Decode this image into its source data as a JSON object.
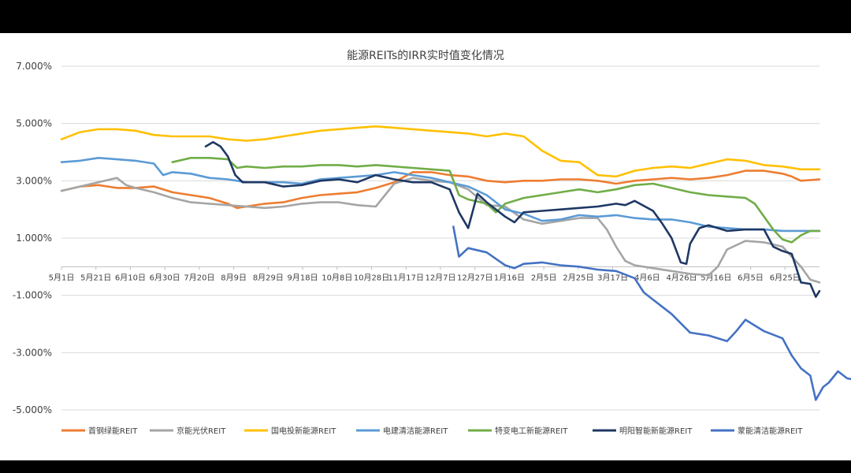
{
  "chart_data": {
    "type": "line",
    "title": "能源REITs的IRR实时值变化情况",
    "xlabel": "",
    "ylabel": "",
    "ylim": [
      -0.05,
      0.07
    ],
    "y_ticks": [
      0.07,
      0.05,
      0.03,
      0.01,
      -0.01,
      -0.03,
      -0.05
    ],
    "y_tick_labels": [
      "7.000%",
      "5.000%",
      "3.000%",
      "1.000%",
      "-1.000%",
      "-3.000%",
      "-5.000%"
    ],
    "x_tick_labels": [
      "5月1日",
      "5月21日",
      "6月10日",
      "6月30日",
      "7月20日",
      "8月9日",
      "8月29日",
      "9月18日",
      "10月8日",
      "10月28日",
      "11月17日",
      "12月7日",
      "12月27日",
      "1月16日",
      "2月5日",
      "2月25日",
      "3月17日",
      "4月6日",
      "4月26日",
      "5月16日",
      "6月5日",
      "6月25日"
    ],
    "x_range": [
      0,
      410
    ],
    "grid": true,
    "legend_position": "bottom",
    "series": [
      {
        "name": "首钢绿能REIT",
        "color": "#ED7D31",
        "points": [
          [
            0,
            0.0265
          ],
          [
            10,
            0.028
          ],
          [
            20,
            0.0285
          ],
          [
            30,
            0.0275
          ],
          [
            40,
            0.0275
          ],
          [
            50,
            0.028
          ],
          [
            60,
            0.026
          ],
          [
            70,
            0.025
          ],
          [
            80,
            0.024
          ],
          [
            90,
            0.022
          ],
          [
            95,
            0.0205
          ],
          [
            100,
            0.021
          ],
          [
            110,
            0.022
          ],
          [
            120,
            0.0225
          ],
          [
            130,
            0.024
          ],
          [
            140,
            0.025
          ],
          [
            150,
            0.0255
          ],
          [
            160,
            0.026
          ],
          [
            170,
            0.0275
          ],
          [
            180,
            0.0295
          ],
          [
            190,
            0.033
          ],
          [
            200,
            0.033
          ],
          [
            210,
            0.032
          ],
          [
            220,
            0.0315
          ],
          [
            230,
            0.03
          ],
          [
            240,
            0.0295
          ],
          [
            250,
            0.03
          ],
          [
            260,
            0.03
          ],
          [
            270,
            0.0305
          ],
          [
            280,
            0.0305
          ],
          [
            290,
            0.03
          ],
          [
            300,
            0.029
          ],
          [
            310,
            0.03
          ],
          [
            320,
            0.0305
          ],
          [
            330,
            0.031
          ],
          [
            340,
            0.0305
          ],
          [
            350,
            0.031
          ],
          [
            360,
            0.032
          ],
          [
            370,
            0.0335
          ],
          [
            380,
            0.0335
          ],
          [
            390,
            0.0325
          ],
          [
            395,
            0.0315
          ],
          [
            400,
            0.03
          ],
          [
            410,
            0.0305
          ]
        ]
      },
      {
        "name": "京能光伏REIT",
        "color": "#A5A5A5",
        "points": [
          [
            0,
            0.0265
          ],
          [
            10,
            0.028
          ],
          [
            20,
            0.0295
          ],
          [
            30,
            0.031
          ],
          [
            35,
            0.0285
          ],
          [
            40,
            0.0275
          ],
          [
            50,
            0.026
          ],
          [
            60,
            0.024
          ],
          [
            70,
            0.0225
          ],
          [
            80,
            0.022
          ],
          [
            90,
            0.0215
          ],
          [
            100,
            0.021
          ],
          [
            110,
            0.0205
          ],
          [
            120,
            0.021
          ],
          [
            130,
            0.022
          ],
          [
            140,
            0.0225
          ],
          [
            150,
            0.0225
          ],
          [
            160,
            0.0215
          ],
          [
            170,
            0.021
          ],
          [
            175,
            0.025
          ],
          [
            180,
            0.029
          ],
          [
            190,
            0.031
          ],
          [
            200,
            0.03
          ],
          [
            210,
            0.0295
          ],
          [
            220,
            0.027
          ],
          [
            230,
            0.0215
          ],
          [
            240,
            0.021
          ],
          [
            250,
            0.0165
          ],
          [
            260,
            0.015
          ],
          [
            270,
            0.016
          ],
          [
            280,
            0.017
          ],
          [
            290,
            0.017
          ],
          [
            295,
            0.013
          ],
          [
            300,
            0.007
          ],
          [
            305,
            0.002
          ],
          [
            310,
            0.0005
          ],
          [
            320,
            -0.0005
          ],
          [
            330,
            -0.0015
          ],
          [
            340,
            -0.0025
          ],
          [
            350,
            -0.003
          ],
          [
            355,
            0.0
          ],
          [
            360,
            0.006
          ],
          [
            370,
            0.009
          ],
          [
            380,
            0.0085
          ],
          [
            390,
            0.007
          ],
          [
            400,
            0.0
          ],
          [
            405,
            -0.0045
          ],
          [
            410,
            -0.0055
          ]
        ]
      },
      {
        "name": "国电投新能源REIT",
        "color": "#FFC000",
        "points": [
          [
            0,
            0.0445
          ],
          [
            10,
            0.047
          ],
          [
            20,
            0.048
          ],
          [
            30,
            0.048
          ],
          [
            40,
            0.0475
          ],
          [
            50,
            0.046
          ],
          [
            60,
            0.0455
          ],
          [
            70,
            0.0455
          ],
          [
            80,
            0.0455
          ],
          [
            90,
            0.0445
          ],
          [
            100,
            0.044
          ],
          [
            110,
            0.0445
          ],
          [
            120,
            0.0455
          ],
          [
            130,
            0.0465
          ],
          [
            140,
            0.0475
          ],
          [
            150,
            0.048
          ],
          [
            160,
            0.0485
          ],
          [
            170,
            0.049
          ],
          [
            180,
            0.0485
          ],
          [
            190,
            0.048
          ],
          [
            200,
            0.0475
          ],
          [
            210,
            0.047
          ],
          [
            220,
            0.0465
          ],
          [
            230,
            0.0455
          ],
          [
            240,
            0.0465
          ],
          [
            250,
            0.0455
          ],
          [
            260,
            0.0405
          ],
          [
            270,
            0.037
          ],
          [
            280,
            0.0365
          ],
          [
            290,
            0.032
          ],
          [
            300,
            0.0315
          ],
          [
            310,
            0.0335
          ],
          [
            320,
            0.0345
          ],
          [
            330,
            0.035
          ],
          [
            340,
            0.0345
          ],
          [
            350,
            0.036
          ],
          [
            360,
            0.0375
          ],
          [
            370,
            0.037
          ],
          [
            380,
            0.0355
          ],
          [
            390,
            0.035
          ],
          [
            400,
            0.034
          ],
          [
            410,
            0.034
          ]
        ]
      },
      {
        "name": "电建清洁能源REIT",
        "color": "#5B9BD5",
        "points": [
          [
            0,
            0.0365
          ],
          [
            10,
            0.037
          ],
          [
            20,
            0.038
          ],
          [
            30,
            0.0375
          ],
          [
            40,
            0.037
          ],
          [
            50,
            0.036
          ],
          [
            55,
            0.032
          ],
          [
            60,
            0.033
          ],
          [
            70,
            0.0325
          ],
          [
            80,
            0.031
          ],
          [
            90,
            0.0305
          ],
          [
            100,
            0.0295
          ],
          [
            110,
            0.0295
          ],
          [
            120,
            0.0295
          ],
          [
            130,
            0.029
          ],
          [
            140,
            0.0305
          ],
          [
            150,
            0.031
          ],
          [
            160,
            0.0315
          ],
          [
            170,
            0.032
          ],
          [
            180,
            0.033
          ],
          [
            190,
            0.032
          ],
          [
            200,
            0.031
          ],
          [
            210,
            0.0295
          ],
          [
            220,
            0.028
          ],
          [
            230,
            0.025
          ],
          [
            240,
            0.02
          ],
          [
            250,
            0.0185
          ],
          [
            260,
            0.016
          ],
          [
            270,
            0.0165
          ],
          [
            280,
            0.018
          ],
          [
            290,
            0.0175
          ],
          [
            300,
            0.018
          ],
          [
            310,
            0.017
          ],
          [
            320,
            0.0165
          ],
          [
            330,
            0.0165
          ],
          [
            340,
            0.0155
          ],
          [
            350,
            0.014
          ],
          [
            360,
            0.0135
          ],
          [
            370,
            0.013
          ],
          [
            380,
            0.013
          ],
          [
            390,
            0.0125
          ],
          [
            400,
            0.0125
          ],
          [
            410,
            0.0125
          ]
        ]
      },
      {
        "name": "特变电工新能源REIT",
        "color": "#70AD47",
        "points": [
          [
            60,
            0.0365
          ],
          [
            70,
            0.038
          ],
          [
            80,
            0.038
          ],
          [
            90,
            0.0375
          ],
          [
            95,
            0.0345
          ],
          [
            100,
            0.035
          ],
          [
            110,
            0.0345
          ],
          [
            120,
            0.035
          ],
          [
            130,
            0.035
          ],
          [
            140,
            0.0355
          ],
          [
            150,
            0.0355
          ],
          [
            160,
            0.035
          ],
          [
            170,
            0.0355
          ],
          [
            180,
            0.035
          ],
          [
            190,
            0.0345
          ],
          [
            200,
            0.034
          ],
          [
            210,
            0.0335
          ],
          [
            215,
            0.025
          ],
          [
            220,
            0.0235
          ],
          [
            230,
            0.022
          ],
          [
            235,
            0.019
          ],
          [
            240,
            0.022
          ],
          [
            250,
            0.024
          ],
          [
            260,
            0.025
          ],
          [
            270,
            0.026
          ],
          [
            280,
            0.027
          ],
          [
            290,
            0.026
          ],
          [
            300,
            0.027
          ],
          [
            310,
            0.0285
          ],
          [
            320,
            0.029
          ],
          [
            330,
            0.0275
          ],
          [
            340,
            0.026
          ],
          [
            350,
            0.025
          ],
          [
            360,
            0.0245
          ],
          [
            370,
            0.024
          ],
          [
            375,
            0.022
          ],
          [
            380,
            0.0175
          ],
          [
            385,
            0.013
          ],
          [
            390,
            0.0095
          ],
          [
            395,
            0.0085
          ],
          [
            400,
            0.011
          ],
          [
            405,
            0.0125
          ],
          [
            410,
            0.0125
          ]
        ]
      },
      {
        "name": "明阳智能新能源REIT",
        "color": "#1F3864",
        "points": [
          [
            78,
            0.042
          ],
          [
            82,
            0.0435
          ],
          [
            86,
            0.042
          ],
          [
            90,
            0.0385
          ],
          [
            94,
            0.032
          ],
          [
            98,
            0.0295
          ],
          [
            110,
            0.0295
          ],
          [
            120,
            0.028
          ],
          [
            130,
            0.0285
          ],
          [
            140,
            0.03
          ],
          [
            150,
            0.0305
          ],
          [
            160,
            0.0295
          ],
          [
            170,
            0.032
          ],
          [
            180,
            0.0305
          ],
          [
            190,
            0.0295
          ],
          [
            200,
            0.0295
          ],
          [
            210,
            0.027
          ],
          [
            215,
            0.019
          ],
          [
            220,
            0.0135
          ],
          [
            225,
            0.0255
          ],
          [
            230,
            0.0225
          ],
          [
            240,
            0.0175
          ],
          [
            245,
            0.0155
          ],
          [
            250,
            0.019
          ],
          [
            260,
            0.0195
          ],
          [
            270,
            0.02
          ],
          [
            280,
            0.0205
          ],
          [
            290,
            0.021
          ],
          [
            300,
            0.022
          ],
          [
            305,
            0.0215
          ],
          [
            310,
            0.023
          ],
          [
            320,
            0.0195
          ],
          [
            325,
            0.015
          ],
          [
            330,
            0.01
          ],
          [
            335,
            0.0015
          ],
          [
            338,
            0.001
          ],
          [
            340,
            0.008
          ],
          [
            345,
            0.0135
          ],
          [
            350,
            0.0145
          ],
          [
            360,
            0.0125
          ],
          [
            370,
            0.013
          ],
          [
            380,
            0.013
          ],
          [
            385,
            0.007
          ],
          [
            390,
            0.0055
          ],
          [
            395,
            0.0045
          ],
          [
            400,
            -0.0055
          ],
          [
            405,
            -0.006
          ],
          [
            408,
            -0.0105
          ],
          [
            410,
            -0.0085
          ]
        ]
      },
      {
        "name": "蒙能清洁能源REIT",
        "color": "#4472C4",
        "points": [
          [
            212,
            0.014
          ],
          [
            215,
            0.0035
          ],
          [
            220,
            0.0065
          ],
          [
            230,
            0.005
          ],
          [
            240,
            0.0005
          ],
          [
            245,
            -0.0005
          ],
          [
            250,
            0.001
          ],
          [
            260,
            0.0015
          ],
          [
            270,
            0.0005
          ],
          [
            280,
            0.0
          ],
          [
            290,
            -0.001
          ],
          [
            300,
            -0.0015
          ],
          [
            310,
            -0.004
          ],
          [
            315,
            -0.009
          ],
          [
            320,
            -0.0115
          ],
          [
            330,
            -0.0165
          ],
          [
            340,
            -0.023
          ],
          [
            350,
            -0.024
          ],
          [
            360,
            -0.026
          ],
          [
            365,
            -0.0225
          ],
          [
            370,
            -0.0185
          ],
          [
            380,
            -0.0225
          ],
          [
            390,
            -0.025
          ],
          [
            395,
            -0.031
          ],
          [
            400,
            -0.0355
          ],
          [
            405,
            -0.038
          ],
          [
            408,
            -0.0465
          ],
          [
            412,
            -0.042
          ],
          [
            415,
            -0.0405
          ],
          [
            420,
            -0.0365
          ],
          [
            425,
            -0.039
          ],
          [
            430,
            -0.0395
          ]
        ]
      }
    ]
  }
}
